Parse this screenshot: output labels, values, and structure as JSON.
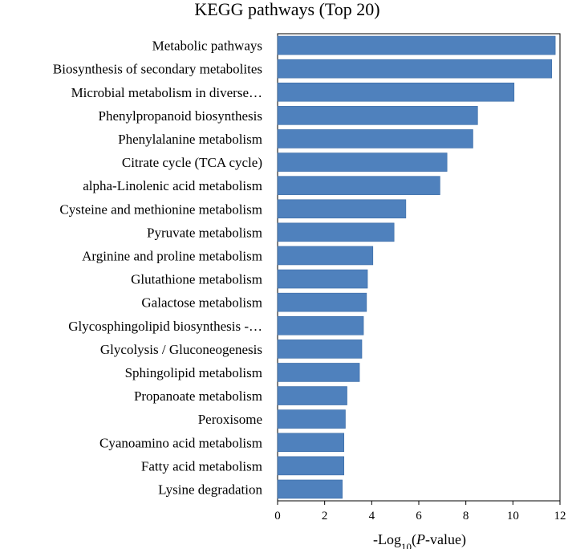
{
  "chart_data": {
    "type": "bar",
    "orientation": "horizontal",
    "title": "KEGG pathways (Top 20)",
    "xlabel_prefix": "-Log",
    "xlabel_sub": "10",
    "xlabel_open": "(",
    "xlabel_italic": "P",
    "xlabel_suffix": "-value)",
    "categories": [
      "Metabolic pathways",
      "Biosynthesis of secondary metabolites",
      "Microbial metabolism in diverse…",
      "Phenylpropanoid biosynthesis",
      "Phenylalanine metabolism",
      "Citrate cycle (TCA cycle)",
      "alpha-Linolenic acid metabolism",
      "Cysteine and methionine metabolism",
      "Pyruvate metabolism",
      "Arginine and proline metabolism",
      "Glutathione metabolism",
      "Galactose metabolism",
      "Glycosphingolipid biosynthesis -…",
      "Glycolysis / Gluconeogenesis",
      "Sphingolipid metabolism",
      "Propanoate metabolism",
      "Peroxisome",
      "Cyanoamino acid metabolism",
      "Fatty acid metabolism",
      "Lysine degradation"
    ],
    "values": [
      11.8,
      11.65,
      10.05,
      8.5,
      8.3,
      7.2,
      6.9,
      5.45,
      4.95,
      4.05,
      3.82,
      3.78,
      3.65,
      3.58,
      3.48,
      2.95,
      2.88,
      2.82,
      2.82,
      2.75
    ],
    "xlim": [
      0,
      12
    ],
    "xticks": [
      "0",
      "2",
      "4",
      "6",
      "8",
      "10",
      "12"
    ],
    "grid": false,
    "bar_color": "#4f81bd",
    "bar_edge_color": "#3a6ba5"
  }
}
